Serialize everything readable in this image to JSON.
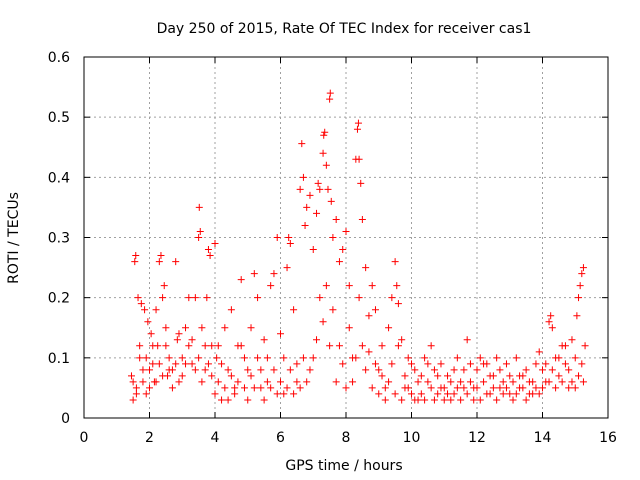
{
  "chart_data": {
    "type": "scatter",
    "title": "Day 250 of 2015, Rate Of TEC Index for receiver cas1",
    "xlabel": "GPS time / hours",
    "ylabel": "ROTI / TECUs",
    "xlim": [
      0,
      16
    ],
    "ylim": [
      0,
      0.6
    ],
    "xticks": [
      0,
      2,
      4,
      6,
      8,
      10,
      12,
      14,
      16
    ],
    "yticks": [
      0,
      0.1,
      0.2,
      0.3,
      0.4,
      0.5,
      0.6
    ],
    "xtick_labels": [
      "0",
      "2",
      "4",
      "6",
      "8",
      "10",
      "12",
      "14",
      "16"
    ],
    "ytick_labels": [
      "0",
      "0.1",
      "0.2",
      "0.3",
      "0.4",
      "0.5",
      "0.6"
    ],
    "grid": true,
    "marker": "+",
    "marker_color": "#ff0000",
    "series": [
      {
        "name": "ROTI",
        "points": [
          [
            1.45,
            0.07
          ],
          [
            1.5,
            0.03
          ],
          [
            1.55,
            0.26
          ],
          [
            1.58,
            0.27
          ],
          [
            1.6,
            0.05
          ],
          [
            1.65,
            0.2
          ],
          [
            1.7,
            0.12
          ],
          [
            1.75,
            0.19
          ],
          [
            1.8,
            0.08
          ],
          [
            1.85,
            0.18
          ],
          [
            1.9,
            0.1
          ],
          [
            1.95,
            0.16
          ],
          [
            2.0,
            0.05
          ],
          [
            2.05,
            0.14
          ],
          [
            2.1,
            0.09
          ],
          [
            2.15,
            0.06
          ],
          [
            2.2,
            0.18
          ],
          [
            2.25,
            0.12
          ],
          [
            2.3,
            0.26
          ],
          [
            2.35,
            0.27
          ],
          [
            2.4,
            0.2
          ],
          [
            2.45,
            0.22
          ],
          [
            2.5,
            0.15
          ],
          [
            2.55,
            0.07
          ],
          [
            2.6,
            0.1
          ],
          [
            2.7,
            0.08
          ],
          [
            2.8,
            0.26
          ],
          [
            2.85,
            0.13
          ],
          [
            2.9,
            0.06
          ],
          [
            3.0,
            0.1
          ],
          [
            3.1,
            0.15
          ],
          [
            3.2,
            0.2
          ],
          [
            3.3,
            0.09
          ],
          [
            3.4,
            0.2
          ],
          [
            3.5,
            0.3
          ],
          [
            3.52,
            0.35
          ],
          [
            3.55,
            0.31
          ],
          [
            3.6,
            0.15
          ],
          [
            3.7,
            0.08
          ],
          [
            3.75,
            0.2
          ],
          [
            3.8,
            0.28
          ],
          [
            3.85,
            0.27
          ],
          [
            3.9,
            0.12
          ],
          [
            4.0,
            0.29
          ],
          [
            4.05,
            0.1
          ],
          [
            4.1,
            0.06
          ],
          [
            4.2,
            0.03
          ],
          [
            4.3,
            0.15
          ],
          [
            4.4,
            0.08
          ],
          [
            4.5,
            0.18
          ],
          [
            4.6,
            0.05
          ],
          [
            4.7,
            0.12
          ],
          [
            4.8,
            0.23
          ],
          [
            4.9,
            0.1
          ],
          [
            5.0,
            0.08
          ],
          [
            5.1,
            0.15
          ],
          [
            5.2,
            0.24
          ],
          [
            5.3,
            0.2
          ],
          [
            5.4,
            0.05
          ],
          [
            5.5,
            0.13
          ],
          [
            5.6,
            0.06
          ],
          [
            5.7,
            0.22
          ],
          [
            5.8,
            0.24
          ],
          [
            5.9,
            0.3
          ],
          [
            6.0,
            0.14
          ],
          [
            6.1,
            0.04
          ],
          [
            6.2,
            0.25
          ],
          [
            6.25,
            0.3
          ],
          [
            6.3,
            0.29
          ],
          [
            6.4,
            0.18
          ],
          [
            6.5,
            0.06
          ],
          [
            6.6,
            0.38
          ],
          [
            6.65,
            0.456
          ],
          [
            6.7,
            0.4
          ],
          [
            6.75,
            0.32
          ],
          [
            6.8,
            0.35
          ],
          [
            6.9,
            0.37
          ],
          [
            7.0,
            0.28
          ],
          [
            7.1,
            0.34
          ],
          [
            7.15,
            0.39
          ],
          [
            7.2,
            0.38
          ],
          [
            7.3,
            0.44
          ],
          [
            7.32,
            0.47
          ],
          [
            7.35,
            0.475
          ],
          [
            7.4,
            0.42
          ],
          [
            7.45,
            0.38
          ],
          [
            7.5,
            0.53
          ],
          [
            7.52,
            0.54
          ],
          [
            7.55,
            0.36
          ],
          [
            7.6,
            0.3
          ],
          [
            7.7,
            0.33
          ],
          [
            7.8,
            0.26
          ],
          [
            7.9,
            0.28
          ],
          [
            8.0,
            0.31
          ],
          [
            8.1,
            0.22
          ],
          [
            8.2,
            0.1
          ],
          [
            8.3,
            0.43
          ],
          [
            8.35,
            0.48
          ],
          [
            8.38,
            0.49
          ],
          [
            8.4,
            0.43
          ],
          [
            8.45,
            0.39
          ],
          [
            8.5,
            0.33
          ],
          [
            8.6,
            0.25
          ],
          [
            8.7,
            0.17
          ],
          [
            8.8,
            0.22
          ],
          [
            8.9,
            0.18
          ],
          [
            9.0,
            0.08
          ],
          [
            9.1,
            0.12
          ],
          [
            9.2,
            0.05
          ],
          [
            9.3,
            0.15
          ],
          [
            9.4,
            0.2
          ],
          [
            9.5,
            0.26
          ],
          [
            9.55,
            0.22
          ],
          [
            9.6,
            0.19
          ],
          [
            9.7,
            0.13
          ],
          [
            9.8,
            0.05
          ],
          [
            9.9,
            0.1
          ],
          [
            10.0,
            0.04
          ],
          [
            10.1,
            0.08
          ],
          [
            10.2,
            0.03
          ],
          [
            10.3,
            0.07
          ],
          [
            10.4,
            0.1
          ],
          [
            10.5,
            0.06
          ],
          [
            10.6,
            0.12
          ],
          [
            10.7,
            0.08
          ],
          [
            10.8,
            0.04
          ],
          [
            10.9,
            0.09
          ],
          [
            11.0,
            0.05
          ],
          [
            11.1,
            0.07
          ],
          [
            11.2,
            0.03
          ],
          [
            11.3,
            0.04
          ],
          [
            11.4,
            0.1
          ],
          [
            11.5,
            0.06
          ],
          [
            11.6,
            0.08
          ],
          [
            11.7,
            0.13
          ],
          [
            11.8,
            0.09
          ],
          [
            11.9,
            0.05
          ],
          [
            12.0,
            0.08
          ],
          [
            12.1,
            0.1
          ],
          [
            12.2,
            0.06
          ],
          [
            12.3,
            0.09
          ],
          [
            12.4,
            0.04
          ],
          [
            12.5,
            0.07
          ],
          [
            12.6,
            0.1
          ],
          [
            12.7,
            0.05
          ],
          [
            12.8,
            0.06
          ],
          [
            12.9,
            0.09
          ],
          [
            13.0,
            0.04
          ],
          [
            13.1,
            0.06
          ],
          [
            13.2,
            0.1
          ],
          [
            13.3,
            0.07
          ],
          [
            13.4,
            0.05
          ],
          [
            13.5,
            0.08
          ],
          [
            13.6,
            0.04
          ],
          [
            13.7,
            0.06
          ],
          [
            13.8,
            0.09
          ],
          [
            13.9,
            0.11
          ],
          [
            14.0,
            0.08
          ],
          [
            14.1,
            0.06
          ],
          [
            14.2,
            0.16
          ],
          [
            14.25,
            0.17
          ],
          [
            14.3,
            0.15
          ],
          [
            14.4,
            0.1
          ],
          [
            14.5,
            0.07
          ],
          [
            14.6,
            0.12
          ],
          [
            14.7,
            0.09
          ],
          [
            14.8,
            0.05
          ],
          [
            14.9,
            0.13
          ],
          [
            15.0,
            0.1
          ],
          [
            15.05,
            0.17
          ],
          [
            15.1,
            0.2
          ],
          [
            15.15,
            0.22
          ],
          [
            15.2,
            0.24
          ],
          [
            15.25,
            0.25
          ],
          [
            15.3,
            0.12
          ],
          [
            1.5,
            0.06
          ],
          [
            1.6,
            0.04
          ],
          [
            1.7,
            0.1
          ],
          [
            1.8,
            0.06
          ],
          [
            1.9,
            0.04
          ],
          [
            2.0,
            0.08
          ],
          [
            2.1,
            0.12
          ],
          [
            2.2,
            0.06
          ],
          [
            2.3,
            0.09
          ],
          [
            2.4,
            0.07
          ],
          [
            2.5,
            0.12
          ],
          [
            2.6,
            0.08
          ],
          [
            2.7,
            0.05
          ],
          [
            2.8,
            0.09
          ],
          [
            2.9,
            0.14
          ],
          [
            3.0,
            0.07
          ],
          [
            3.1,
            0.09
          ],
          [
            3.2,
            0.12
          ],
          [
            3.3,
            0.13
          ],
          [
            3.4,
            0.08
          ],
          [
            3.5,
            0.1
          ],
          [
            3.6,
            0.06
          ],
          [
            3.7,
            0.12
          ],
          [
            3.8,
            0.09
          ],
          [
            3.9,
            0.07
          ],
          [
            4.0,
            0.04
          ],
          [
            4.1,
            0.12
          ],
          [
            4.2,
            0.09
          ],
          [
            4.3,
            0.05
          ],
          [
            4.4,
            0.03
          ],
          [
            4.5,
            0.07
          ],
          [
            4.6,
            0.04
          ],
          [
            4.7,
            0.06
          ],
          [
            4.8,
            0.12
          ],
          [
            4.9,
            0.05
          ],
          [
            5.0,
            0.03
          ],
          [
            5.1,
            0.07
          ],
          [
            5.2,
            0.05
          ],
          [
            5.3,
            0.1
          ],
          [
            5.4,
            0.08
          ],
          [
            5.5,
            0.03
          ],
          [
            5.6,
            0.1
          ],
          [
            5.7,
            0.05
          ],
          [
            5.8,
            0.08
          ],
          [
            5.9,
            0.04
          ],
          [
            6.0,
            0.06
          ],
          [
            6.1,
            0.1
          ],
          [
            6.2,
            0.05
          ],
          [
            6.3,
            0.08
          ],
          [
            6.4,
            0.04
          ],
          [
            6.5,
            0.09
          ],
          [
            6.6,
            0.05
          ],
          [
            6.7,
            0.1
          ],
          [
            6.8,
            0.06
          ],
          [
            6.9,
            0.08
          ],
          [
            7.0,
            0.1
          ],
          [
            7.1,
            0.13
          ],
          [
            7.2,
            0.2
          ],
          [
            7.3,
            0.16
          ],
          [
            7.4,
            0.22
          ],
          [
            7.5,
            0.12
          ],
          [
            7.6,
            0.18
          ],
          [
            7.7,
            0.06
          ],
          [
            7.8,
            0.12
          ],
          [
            7.9,
            0.09
          ],
          [
            8.0,
            0.05
          ],
          [
            8.1,
            0.15
          ],
          [
            8.2,
            0.06
          ],
          [
            8.3,
            0.1
          ],
          [
            8.4,
            0.2
          ],
          [
            8.5,
            0.12
          ],
          [
            8.6,
            0.08
          ],
          [
            8.7,
            0.11
          ],
          [
            8.8,
            0.05
          ],
          [
            8.9,
            0.09
          ],
          [
            9.0,
            0.04
          ],
          [
            9.1,
            0.07
          ],
          [
            9.2,
            0.03
          ],
          [
            9.3,
            0.06
          ],
          [
            9.4,
            0.09
          ],
          [
            9.5,
            0.04
          ],
          [
            9.6,
            0.12
          ],
          [
            9.7,
            0.03
          ],
          [
            9.8,
            0.07
          ],
          [
            9.9,
            0.05
          ],
          [
            10.0,
            0.09
          ],
          [
            10.1,
            0.03
          ],
          [
            10.2,
            0.06
          ],
          [
            10.3,
            0.04
          ],
          [
            10.4,
            0.03
          ],
          [
            10.5,
            0.09
          ],
          [
            10.6,
            0.05
          ],
          [
            10.7,
            0.03
          ],
          [
            10.8,
            0.07
          ],
          [
            10.9,
            0.05
          ],
          [
            11.0,
            0.03
          ],
          [
            11.1,
            0.04
          ],
          [
            11.2,
            0.06
          ],
          [
            11.3,
            0.08
          ],
          [
            11.4,
            0.05
          ],
          [
            11.5,
            0.03
          ],
          [
            11.6,
            0.05
          ],
          [
            11.7,
            0.04
          ],
          [
            11.8,
            0.06
          ],
          [
            11.9,
            0.03
          ],
          [
            12.0,
            0.05
          ],
          [
            12.1,
            0.03
          ],
          [
            12.2,
            0.09
          ],
          [
            12.3,
            0.04
          ],
          [
            12.4,
            0.07
          ],
          [
            12.5,
            0.05
          ],
          [
            12.6,
            0.03
          ],
          [
            12.7,
            0.08
          ],
          [
            12.8,
            0.04
          ],
          [
            12.9,
            0.05
          ],
          [
            13.0,
            0.07
          ],
          [
            13.1,
            0.03
          ],
          [
            13.2,
            0.04
          ],
          [
            13.3,
            0.05
          ],
          [
            13.4,
            0.07
          ],
          [
            13.5,
            0.03
          ],
          [
            13.6,
            0.06
          ],
          [
            13.7,
            0.04
          ],
          [
            13.8,
            0.05
          ],
          [
            13.9,
            0.04
          ],
          [
            14.0,
            0.05
          ],
          [
            14.1,
            0.09
          ],
          [
            14.2,
            0.06
          ],
          [
            14.3,
            0.08
          ],
          [
            14.4,
            0.05
          ],
          [
            14.5,
            0.1
          ],
          [
            14.6,
            0.06
          ],
          [
            14.7,
            0.12
          ],
          [
            14.8,
            0.08
          ],
          [
            14.9,
            0.06
          ],
          [
            15.0,
            0.05
          ],
          [
            15.1,
            0.07
          ],
          [
            15.2,
            0.09
          ],
          [
            15.25,
            0.06
          ]
        ]
      }
    ]
  }
}
